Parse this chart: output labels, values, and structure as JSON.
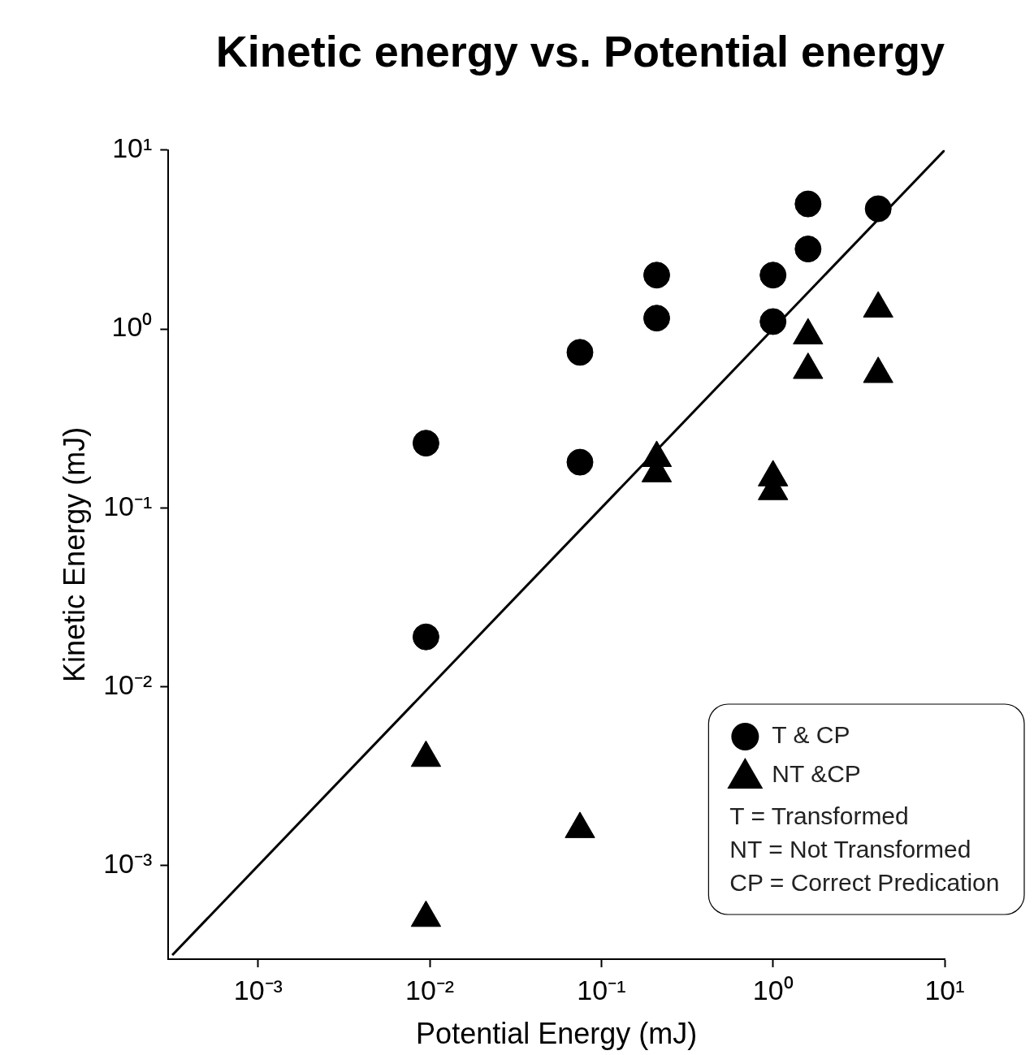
{
  "chart_data": {
    "type": "scatter",
    "title": "Kinetic energy vs. Potential energy",
    "xlabel": "Potential Energy (mJ)",
    "ylabel": "Kinetic Energy (mJ)",
    "log": "xy",
    "grid": false,
    "legend": "bottom right",
    "xlim": [
      0.000316,
      10
    ],
    "ylim": [
      0.000316,
      10
    ],
    "xticks": [
      {
        "value": 0.001,
        "label": "10⁻³"
      },
      {
        "value": 0.01,
        "label": "10⁻²"
      },
      {
        "value": 0.1,
        "label": "10⁻¹"
      },
      {
        "value": 1,
        "label": "10⁰"
      },
      {
        "value": 10,
        "label": "10¹"
      }
    ],
    "yticks": [
      {
        "value": 0.001,
        "label": "10⁻³"
      },
      {
        "value": 0.01,
        "label": "10⁻²"
      },
      {
        "value": 0.1,
        "label": "10⁻¹"
      },
      {
        "value": 1,
        "label": "10⁰"
      },
      {
        "value": 10,
        "label": "10¹"
      }
    ],
    "series": [
      {
        "name": "T & CP",
        "color": "#000000",
        "marker": "circle",
        "x": [
          0.0095,
          0.0095,
          0.075,
          0.075,
          0.21,
          0.21,
          1,
          1,
          1.6,
          1.6,
          4.1
        ],
        "values": [
          0.23,
          0.019,
          0.74,
          0.18,
          2.0,
          1.15,
          2.0,
          1.1,
          5.0,
          2.8,
          4.7
        ]
      },
      {
        "name": "NT &CP",
        "color": "#000000",
        "marker": "triangle",
        "x": [
          0.0095,
          0.0095,
          0.075,
          0.21,
          0.21,
          1,
          1,
          1.6,
          1.6,
          4.1,
          4.1
        ],
        "values": [
          0.004,
          0.00051,
          0.0016,
          0.19,
          0.156,
          0.148,
          0.124,
          0.92,
          0.59,
          1.3,
          0.56
        ]
      },
      {
        "type": "line",
        "color": "#000000",
        "marker": "none",
        "line_style": "solid",
        "x": [
          0.000316,
          10
        ],
        "values": [
          0.000316,
          10
        ]
      }
    ],
    "annotations": [
      "T = Transformed",
      "NT = Not Transformed",
      "CP = Correct Predication"
    ]
  }
}
